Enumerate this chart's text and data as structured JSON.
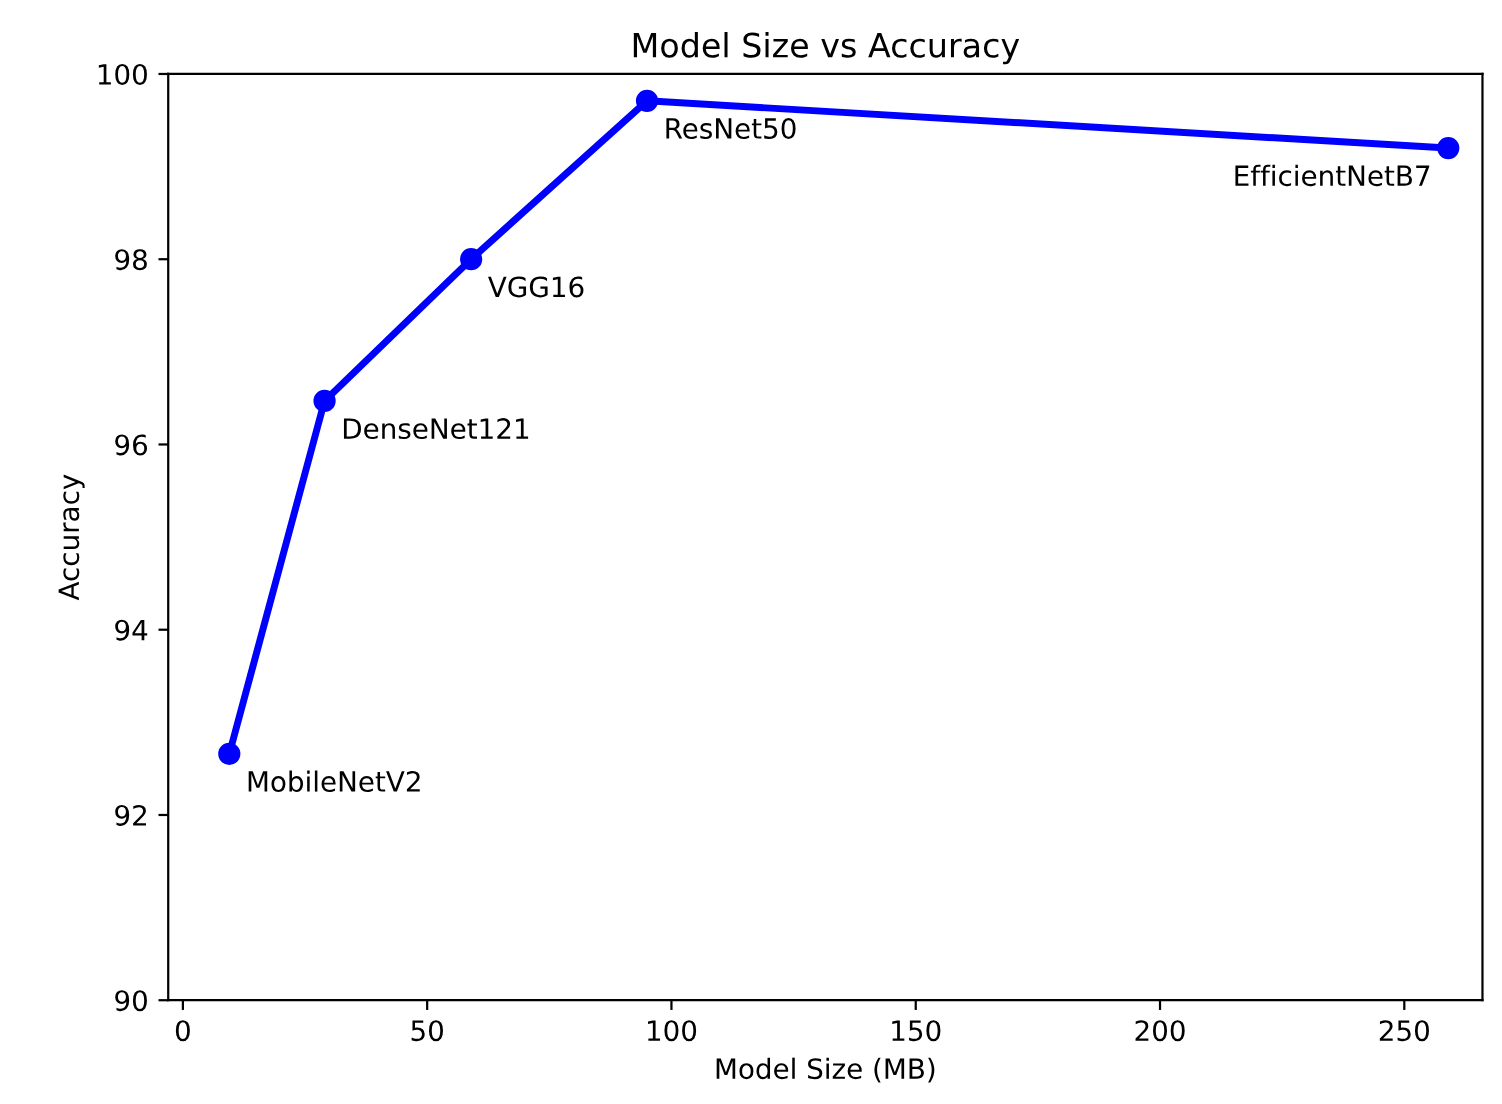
{
  "chart_data": {
    "type": "line",
    "title": "Model Size vs Accuracy",
    "xlabel": "Model Size (MB)",
    "ylabel": "Accuracy",
    "x": [
      9.5,
      29,
      59,
      95,
      259
    ],
    "series": [
      {
        "color": "#0000ff",
        "values": [
          92.66,
          96.47,
          98.0,
          99.71,
          99.2
        ]
      }
    ],
    "annotations": [
      {
        "text": "MobileNetV2",
        "x": 9.5,
        "y": 92.66
      },
      {
        "text": "DenseNet121",
        "x": 29,
        "y": 96.47
      },
      {
        "text": "VGG16",
        "x": 59,
        "y": 98.0
      },
      {
        "text": "ResNet50",
        "x": 95,
        "y": 99.71
      },
      {
        "text": "EfficientNetB7",
        "x": 259,
        "y": 99.2
      }
    ],
    "xlim": [
      -3,
      266
    ],
    "ylim": [
      90,
      100
    ],
    "xticks": [
      0,
      50,
      100,
      150,
      200,
      250
    ],
    "yticks": [
      90,
      92,
      94,
      96,
      98,
      100
    ],
    "marker": "circle",
    "line_style": "solid",
    "grid": false,
    "legend": false
  }
}
